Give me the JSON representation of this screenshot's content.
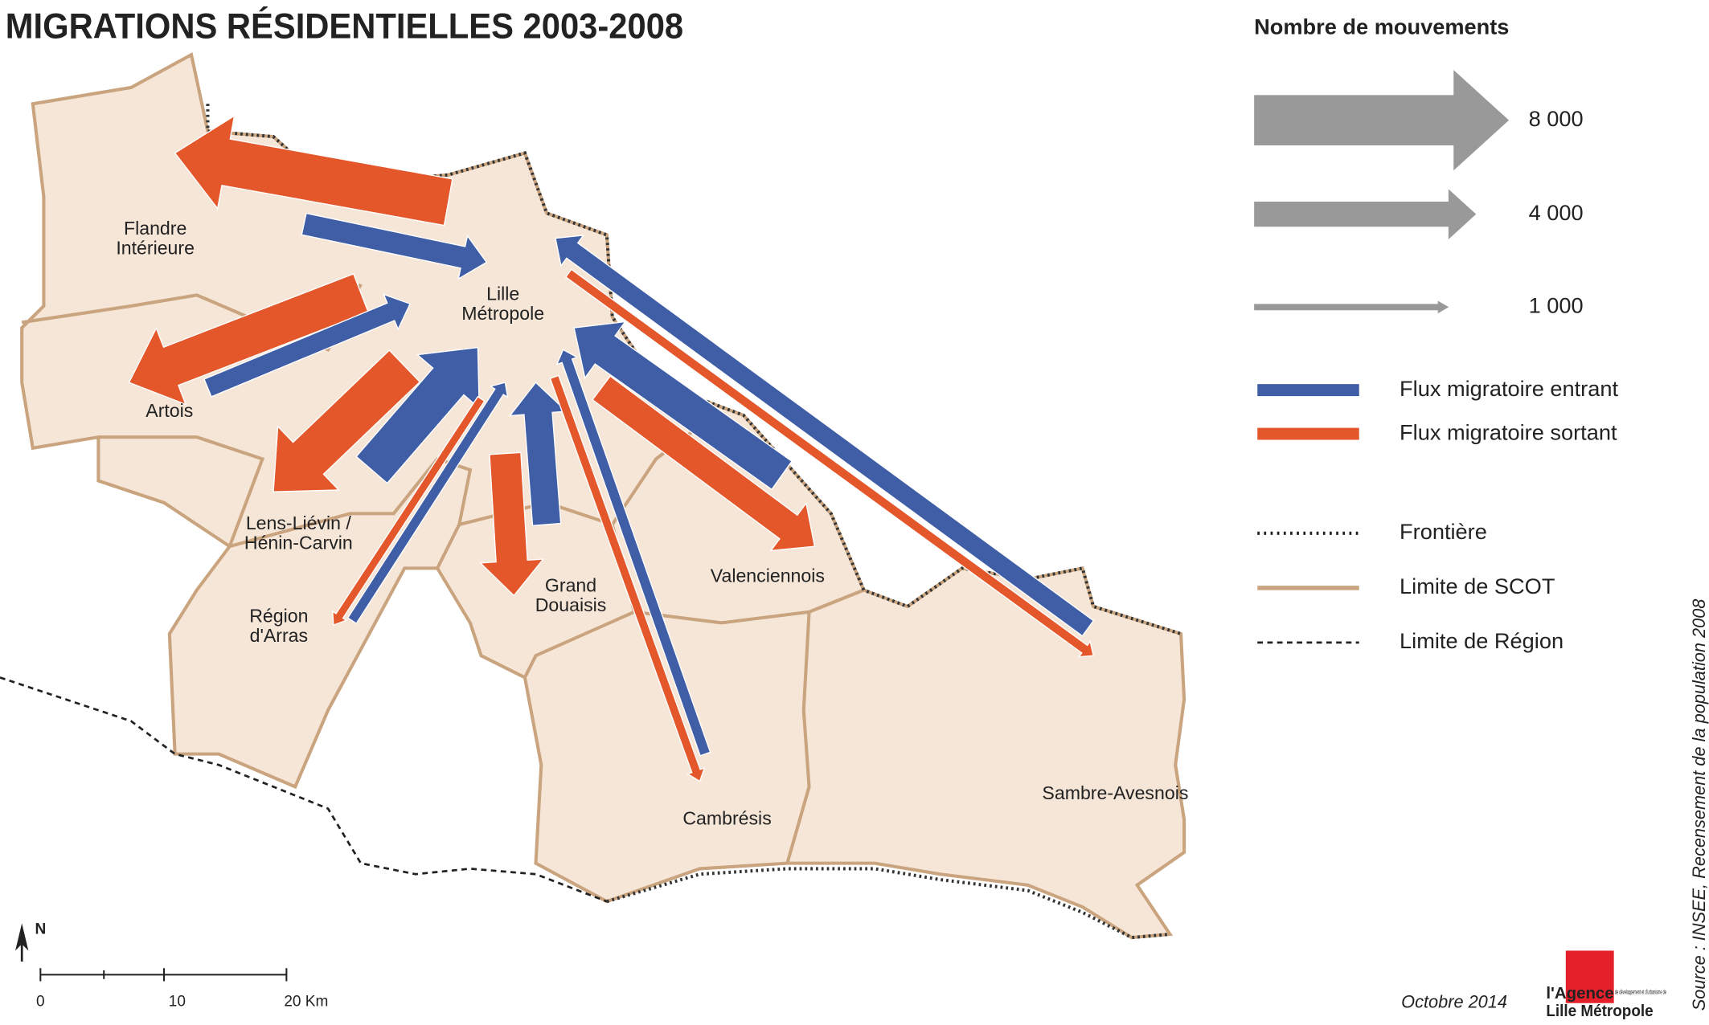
{
  "title": "MIGRATIONS RÉSIDENTIELLES 2003-2008",
  "legend": {
    "title": "Nombre de mouvements",
    "scale": [
      {
        "value": 8000,
        "label": "8 000"
      },
      {
        "value": 4000,
        "label": "4 000"
      },
      {
        "value": 1000,
        "label": "1 000"
      }
    ],
    "flows": [
      {
        "label": "Flux migratoire entrant",
        "color": "#3f5ea6"
      },
      {
        "label": "Flux migratoire sortant",
        "color": "#e3572b"
      }
    ],
    "lines": [
      "Frontière",
      "Limite de SCOT",
      "Limite de Région"
    ]
  },
  "hub": [
    "Lille",
    "Métropole"
  ],
  "regions": [
    {
      "label": [
        "Flandre",
        "Intérieure"
      ],
      "in": 3500,
      "out": 7500
    },
    {
      "label": [
        "Artois"
      ],
      "in": 3000,
      "out": 6500
    },
    {
      "label": [
        "Lens-Liévin /",
        "Hénin-Carvin"
      ],
      "in": 6500,
      "out": 7000
    },
    {
      "label": [
        "Région",
        "d'Arras"
      ],
      "in": 1600,
      "out": 1300
    },
    {
      "label": [
        "Grand",
        "Douaisis"
      ],
      "in": 4500,
      "out": 5000
    },
    {
      "label": [
        "Cambrésis"
      ],
      "in": 1700,
      "out": 1400
    },
    {
      "label": [
        "Valenciennois"
      ],
      "in": 5500,
      "out": 4700
    },
    {
      "label": [
        "Sambre-Avesnois"
      ],
      "in": 3000,
      "out": 1500
    }
  ],
  "scale_bar": [
    "0",
    "10",
    "20 Km"
  ],
  "north": "N",
  "source": "Source : INSEE, Recensement de la population 2008",
  "date": "Octobre 2014",
  "logo": {
    "name": [
      "l'Agence",
      "Lille Métropole"
    ],
    "tagline": "de développement et d'urbanisme de"
  }
}
